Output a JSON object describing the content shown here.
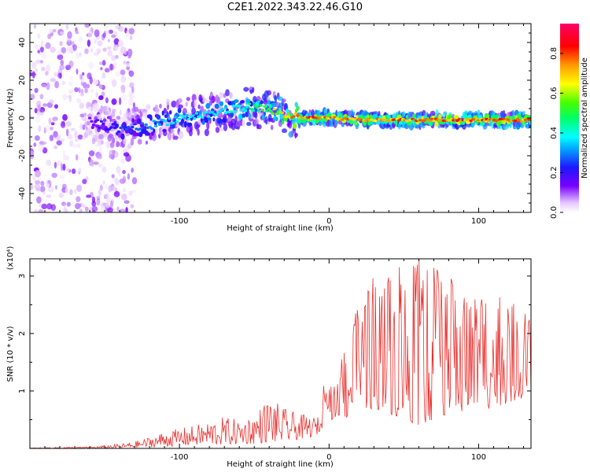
{
  "title": "C2E1.2022.343.22.46.G10",
  "chart_data": [
    {
      "type": "heatmap",
      "xlabel": "Height of straight line (km)",
      "ylabel": "Frequency (Hz)",
      "xlim": [
        -200,
        135
      ],
      "ylim": [
        -50,
        50
      ],
      "x_ticks": [
        -100,
        0,
        100
      ],
      "y_ticks": [
        -40,
        -20,
        0,
        20,
        40
      ],
      "colorbar": {
        "label": "Normalized spectral amplitude",
        "ticks": [
          0.0,
          0.2,
          0.4,
          0.6,
          0.8
        ],
        "range": [
          0,
          0.95
        ],
        "colormap": [
          "#ffffff",
          "#e6c8ff",
          "#7a00ff",
          "#1a1aff",
          "#00aaff",
          "#00ffff",
          "#00ff66",
          "#44ff00",
          "#ffff00",
          "#ff9900",
          "#ff0000",
          "#ff0066"
        ]
      },
      "ridge": {
        "x": [
          -160,
          -140,
          -120,
          -100,
          -80,
          -60,
          -50,
          -40,
          -30,
          -20,
          0,
          20,
          40,
          60,
          80,
          100,
          120,
          135
        ],
        "frequency": [
          -2,
          -6,
          -4,
          0,
          2,
          5,
          6,
          4,
          2,
          0,
          0,
          -1,
          -1,
          -1,
          -1,
          -1,
          -1,
          -1
        ],
        "peak_amplitude": [
          0.2,
          0.3,
          0.35,
          0.45,
          0.45,
          0.5,
          0.55,
          0.6,
          0.8,
          0.9,
          0.85,
          0.85,
          0.85,
          0.9,
          0.9,
          0.9,
          0.9,
          0.85
        ]
      }
    },
    {
      "type": "line",
      "xlabel": "Height of straight line (km)",
      "ylabel": "SNR (10 * v/v)",
      "scale_label": "(x10⁴)",
      "xlim": [
        -200,
        135
      ],
      "ylim": [
        0,
        3.3
      ],
      "x_ticks": [
        -100,
        0,
        100
      ],
      "y_ticks": [
        1,
        2,
        3
      ],
      "color": "#e8312e",
      "series": [
        {
          "x": [
            -200,
            -180,
            -160,
            -150,
            -140,
            -130,
            -120,
            -110,
            -100,
            -90,
            -80,
            -70,
            -60,
            -50,
            -40,
            -35,
            -30,
            -20,
            -10,
            -5,
            -2,
            0,
            5,
            10,
            20,
            30,
            40,
            50,
            60,
            70,
            80,
            90,
            100,
            110,
            120,
            135
          ],
          "envelope": [
            0.01,
            0.02,
            0.03,
            0.05,
            0.08,
            0.12,
            0.2,
            0.3,
            0.35,
            0.4,
            0.48,
            0.55,
            0.5,
            0.6,
            0.9,
            0.8,
            0.7,
            0.6,
            0.55,
            0.55,
            1.9,
            1.3,
            1.0,
            1.9,
            2.5,
            3.0,
            3.2,
            3.2,
            3.3,
            3.2,
            3.0,
            2.9,
            2.8,
            2.7,
            2.6,
            2.3
          ],
          "floor": [
            0.0,
            0.0,
            0.0,
            0.0,
            0.0,
            0.01,
            0.02,
            0.03,
            0.04,
            0.05,
            0.06,
            0.06,
            0.07,
            0.08,
            0.1,
            0.1,
            0.1,
            0.15,
            0.2,
            0.3,
            0.9,
            0.5,
            0.5,
            0.5,
            0.6,
            0.7,
            0.6,
            0.5,
            0.4,
            0.5,
            0.6,
            0.6,
            0.7,
            0.7,
            0.8,
            0.9
          ]
        }
      ]
    }
  ]
}
